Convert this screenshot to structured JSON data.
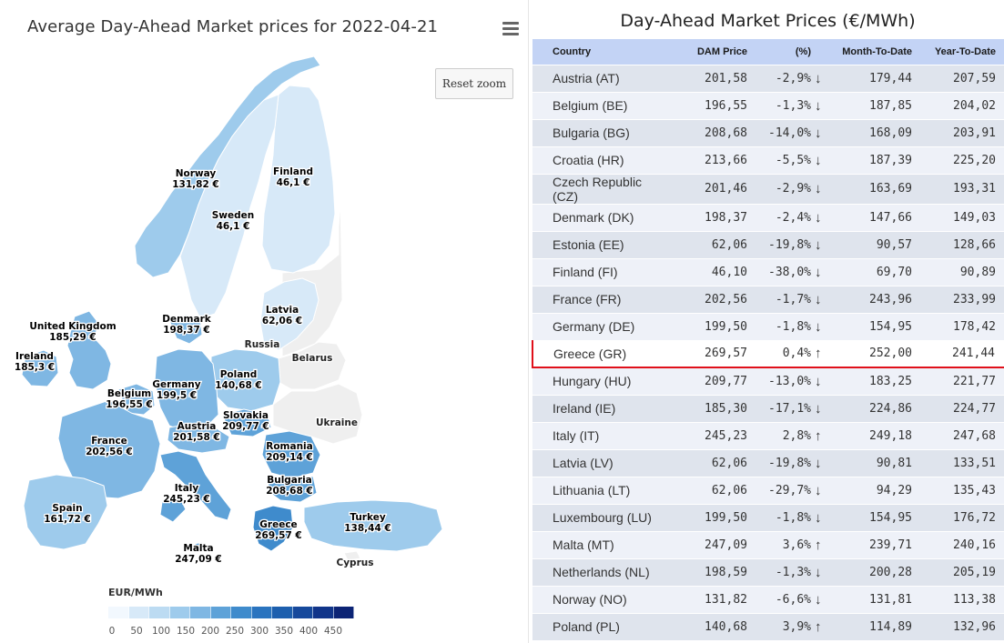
{
  "map": {
    "title": "Average Day-Ahead Market prices for 2022-04-21",
    "reset_zoom_label": "Reset zoom",
    "menu_icon": "hamburger-menu-icon",
    "legend": {
      "title": "EUR/MWh",
      "min": 0,
      "max": 500,
      "ticks": [
        "0",
        "50",
        "100",
        "150",
        "200",
        "250",
        "300",
        "350",
        "400",
        "450"
      ],
      "gradient_colors": [
        "#f2f8fe",
        "#d7e9f8",
        "#bcdbf2",
        "#9ecbec",
        "#7fb7e3",
        "#5ea2d8",
        "#3f8bcc",
        "#2a74bf",
        "#1d5fae",
        "#16499c",
        "#11358a",
        "#0c2475"
      ]
    },
    "no_data_color": "#efefef",
    "border_color": "#ffffff"
  },
  "chart_data": [
    {
      "type": "map",
      "title": "Average Day-Ahead Market prices for 2022-04-21",
      "unit": "EUR/MWh",
      "colorbar_range": [
        0,
        500
      ],
      "regions": [
        {
          "name": "Norway",
          "label": "Norway",
          "value_label": "131,82 €",
          "value": 131.82
        },
        {
          "name": "Finland",
          "label": "Finland",
          "value_label": "46,1 €",
          "value": 46.1
        },
        {
          "name": "Sweden",
          "label": "Sweden",
          "value_label": "46,1 €",
          "value": 46.1
        },
        {
          "name": "Latvia",
          "label": "Latvia",
          "value_label": "62,06 €",
          "value": 62.06
        },
        {
          "name": "United Kingdom",
          "label": "United Kingdom",
          "value_label": "185,29 €",
          "value": 185.29
        },
        {
          "name": "Ireland",
          "label": "Ireland",
          "value_label": "185,3 €",
          "value": 185.3
        },
        {
          "name": "Denmark",
          "label": "Denmark",
          "value_label": "198,37 €",
          "value": 198.37
        },
        {
          "name": "Poland",
          "label": "Poland",
          "value_label": "140,68 €",
          "value": 140.68
        },
        {
          "name": "Germany",
          "label": "Germany",
          "value_label": "199,5 €",
          "value": 199.5
        },
        {
          "name": "Belgium",
          "label": "Belgium",
          "value_label": "196,55 €",
          "value": 196.55
        },
        {
          "name": "France",
          "label": "France",
          "value_label": "202,56 €",
          "value": 202.56
        },
        {
          "name": "Austria",
          "label": "Austria",
          "value_label": "201,58 €",
          "value": 201.58
        },
        {
          "name": "Slovakia",
          "label": "Slovakia",
          "value_label": "209,77 €",
          "value": 209.77
        },
        {
          "name": "Romania",
          "label": "Romania",
          "value_label": "209,14 €",
          "value": 209.14
        },
        {
          "name": "Bulgaria",
          "label": "Bulgaria",
          "value_label": "208,68 €",
          "value": 208.68
        },
        {
          "name": "Italy",
          "label": "Italy",
          "value_label": "245,23 €",
          "value": 245.23
        },
        {
          "name": "Spain",
          "label": "Spain",
          "value_label": "161,72 €",
          "value": 161.72
        },
        {
          "name": "Greece",
          "label": "Greece",
          "value_label": "269,57 €",
          "value": 269.57
        },
        {
          "name": "Turkey",
          "label": "Turkey",
          "value_label": "138,44 €",
          "value": 138.44
        },
        {
          "name": "Malta",
          "label": "Malta",
          "value_label": "247,09 €",
          "value": 247.09
        }
      ],
      "unlabeled_regions": [
        "Russia",
        "Belarus",
        "Ukraine",
        "Cyprus"
      ]
    },
    {
      "type": "table",
      "title": "Day-Ahead Market Prices (€/MWh)",
      "columns": [
        "Country",
        "DAM Price",
        "(%)",
        "Month-To-Date",
        "Year-To-Date"
      ],
      "highlighted_row": "Greece (GR)",
      "rows": [
        {
          "country": "Austria (AT)",
          "dam": "201,58",
          "pct": "-2,9%",
          "trend": "down",
          "mtd": "179,44",
          "ytd": "207,59"
        },
        {
          "country": "Belgium (BE)",
          "dam": "196,55",
          "pct": "-1,3%",
          "trend": "down",
          "mtd": "187,85",
          "ytd": "204,02"
        },
        {
          "country": "Bulgaria (BG)",
          "dam": "208,68",
          "pct": "-14,0%",
          "trend": "down",
          "mtd": "168,09",
          "ytd": "203,91"
        },
        {
          "country": "Croatia (HR)",
          "dam": "213,66",
          "pct": "-5,5%",
          "trend": "down",
          "mtd": "187,39",
          "ytd": "225,20"
        },
        {
          "country": "Czech Republic (CZ)",
          "dam": "201,46",
          "pct": "-2,9%",
          "trend": "down",
          "mtd": "163,69",
          "ytd": "193,31"
        },
        {
          "country": "Denmark (DK)",
          "dam": "198,37",
          "pct": "-2,4%",
          "trend": "down",
          "mtd": "147,66",
          "ytd": "149,03"
        },
        {
          "country": "Estonia (EE)",
          "dam": "62,06",
          "pct": "-19,8%",
          "trend": "down",
          "mtd": "90,57",
          "ytd": "128,66"
        },
        {
          "country": "Finland (FI)",
          "dam": "46,10",
          "pct": "-38,0%",
          "trend": "down",
          "mtd": "69,70",
          "ytd": "90,89"
        },
        {
          "country": "France (FR)",
          "dam": "202,56",
          "pct": "-1,7%",
          "trend": "down",
          "mtd": "243,96",
          "ytd": "233,99"
        },
        {
          "country": "Germany (DE)",
          "dam": "199,50",
          "pct": "-1,8%",
          "trend": "down",
          "mtd": "154,95",
          "ytd": "178,42"
        },
        {
          "country": "Greece (GR)",
          "dam": "269,57",
          "pct": "0,4%",
          "trend": "up",
          "mtd": "252,00",
          "ytd": "241,44"
        },
        {
          "country": "Hungary (HU)",
          "dam": "209,77",
          "pct": "-13,0%",
          "trend": "down",
          "mtd": "183,25",
          "ytd": "221,77"
        },
        {
          "country": "Ireland (IE)",
          "dam": "185,30",
          "pct": "-17,1%",
          "trend": "down",
          "mtd": "224,86",
          "ytd": "224,77"
        },
        {
          "country": "Italy (IT)",
          "dam": "245,23",
          "pct": "2,8%",
          "trend": "up",
          "mtd": "249,18",
          "ytd": "247,68"
        },
        {
          "country": "Latvia (LV)",
          "dam": "62,06",
          "pct": "-19,8%",
          "trend": "down",
          "mtd": "90,81",
          "ytd": "133,51"
        },
        {
          "country": "Lithuania (LT)",
          "dam": "62,06",
          "pct": "-29,7%",
          "trend": "down",
          "mtd": "94,29",
          "ytd": "135,43"
        },
        {
          "country": "Luxembourg (LU)",
          "dam": "199,50",
          "pct": "-1,8%",
          "trend": "down",
          "mtd": "154,95",
          "ytd": "176,72"
        },
        {
          "country": "Malta (MT)",
          "dam": "247,09",
          "pct": "3,6%",
          "trend": "up",
          "mtd": "239,71",
          "ytd": "240,16"
        },
        {
          "country": "Netherlands (NL)",
          "dam": "198,59",
          "pct": "-1,3%",
          "trend": "down",
          "mtd": "200,28",
          "ytd": "205,19"
        },
        {
          "country": "Norway (NO)",
          "dam": "131,82",
          "pct": "-6,6%",
          "trend": "down",
          "mtd": "131,81",
          "ytd": "113,38"
        },
        {
          "country": "Poland (PL)",
          "dam": "140,68",
          "pct": "3,9%",
          "trend": "up",
          "mtd": "114,89",
          "ytd": "132,96"
        }
      ]
    }
  ],
  "table": {
    "title": "Day-Ahead Market Prices (€/MWh)",
    "headers": {
      "country": "Country",
      "dam": "DAM Price",
      "pct": "(%)",
      "mtd": "Month-To-Date",
      "ytd": "Year-To-Date"
    },
    "trend_icons": {
      "down": "down-arrow-icon",
      "up": "up-arrow-icon"
    },
    "colors": {
      "negative": "#e53935",
      "positive": "#2e8b3a",
      "header_bg": "#c3d3f5",
      "highlight_border": "#e0101a"
    }
  }
}
